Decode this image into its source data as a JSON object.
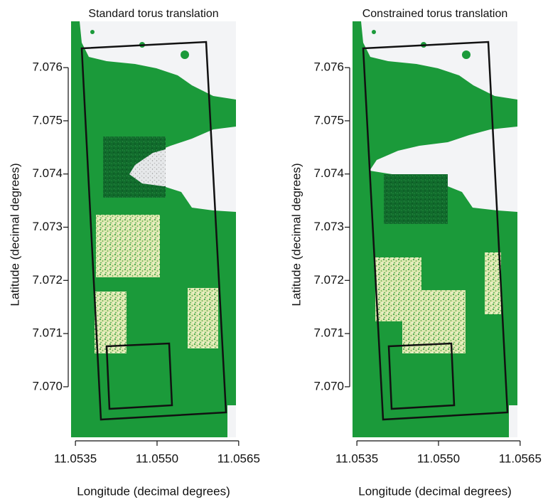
{
  "chart_data": [
    {
      "type": "raster",
      "title": "Standard torus translation",
      "xlabel": "Longitude (decimal degrees)",
      "ylabel": "Latitude (decimal degrees)",
      "xlim": [
        11.05342,
        11.05645
      ],
      "ylim": [
        7.06905,
        7.07687
      ],
      "xticks": [
        11.0535,
        {
          "value": 11.055,
          "label": "11.0550"
        },
        11.0565
      ],
      "yticks": [
        {
          "value": 7.07,
          "label": "7.070"
        },
        7.071,
        7.072,
        7.073,
        7.074,
        7.075,
        7.076
      ]
    },
    {
      "type": "raster",
      "title": "Constrained torus translation",
      "xlabel": "Longitude (decimal degrees)",
      "ylabel": "Latitude (decimal degrees)",
      "xlim": [
        11.05342,
        11.05645
      ],
      "ylim": [
        7.06905,
        7.07687
      ],
      "xticks": [
        11.0535,
        {
          "value": 11.055,
          "label": "11.0550"
        },
        11.0565
      ],
      "yticks": [
        {
          "value": 7.07,
          "label": "7.070"
        },
        7.071,
        7.072,
        7.073,
        7.074,
        7.075,
        7.076
      ]
    }
  ]
}
